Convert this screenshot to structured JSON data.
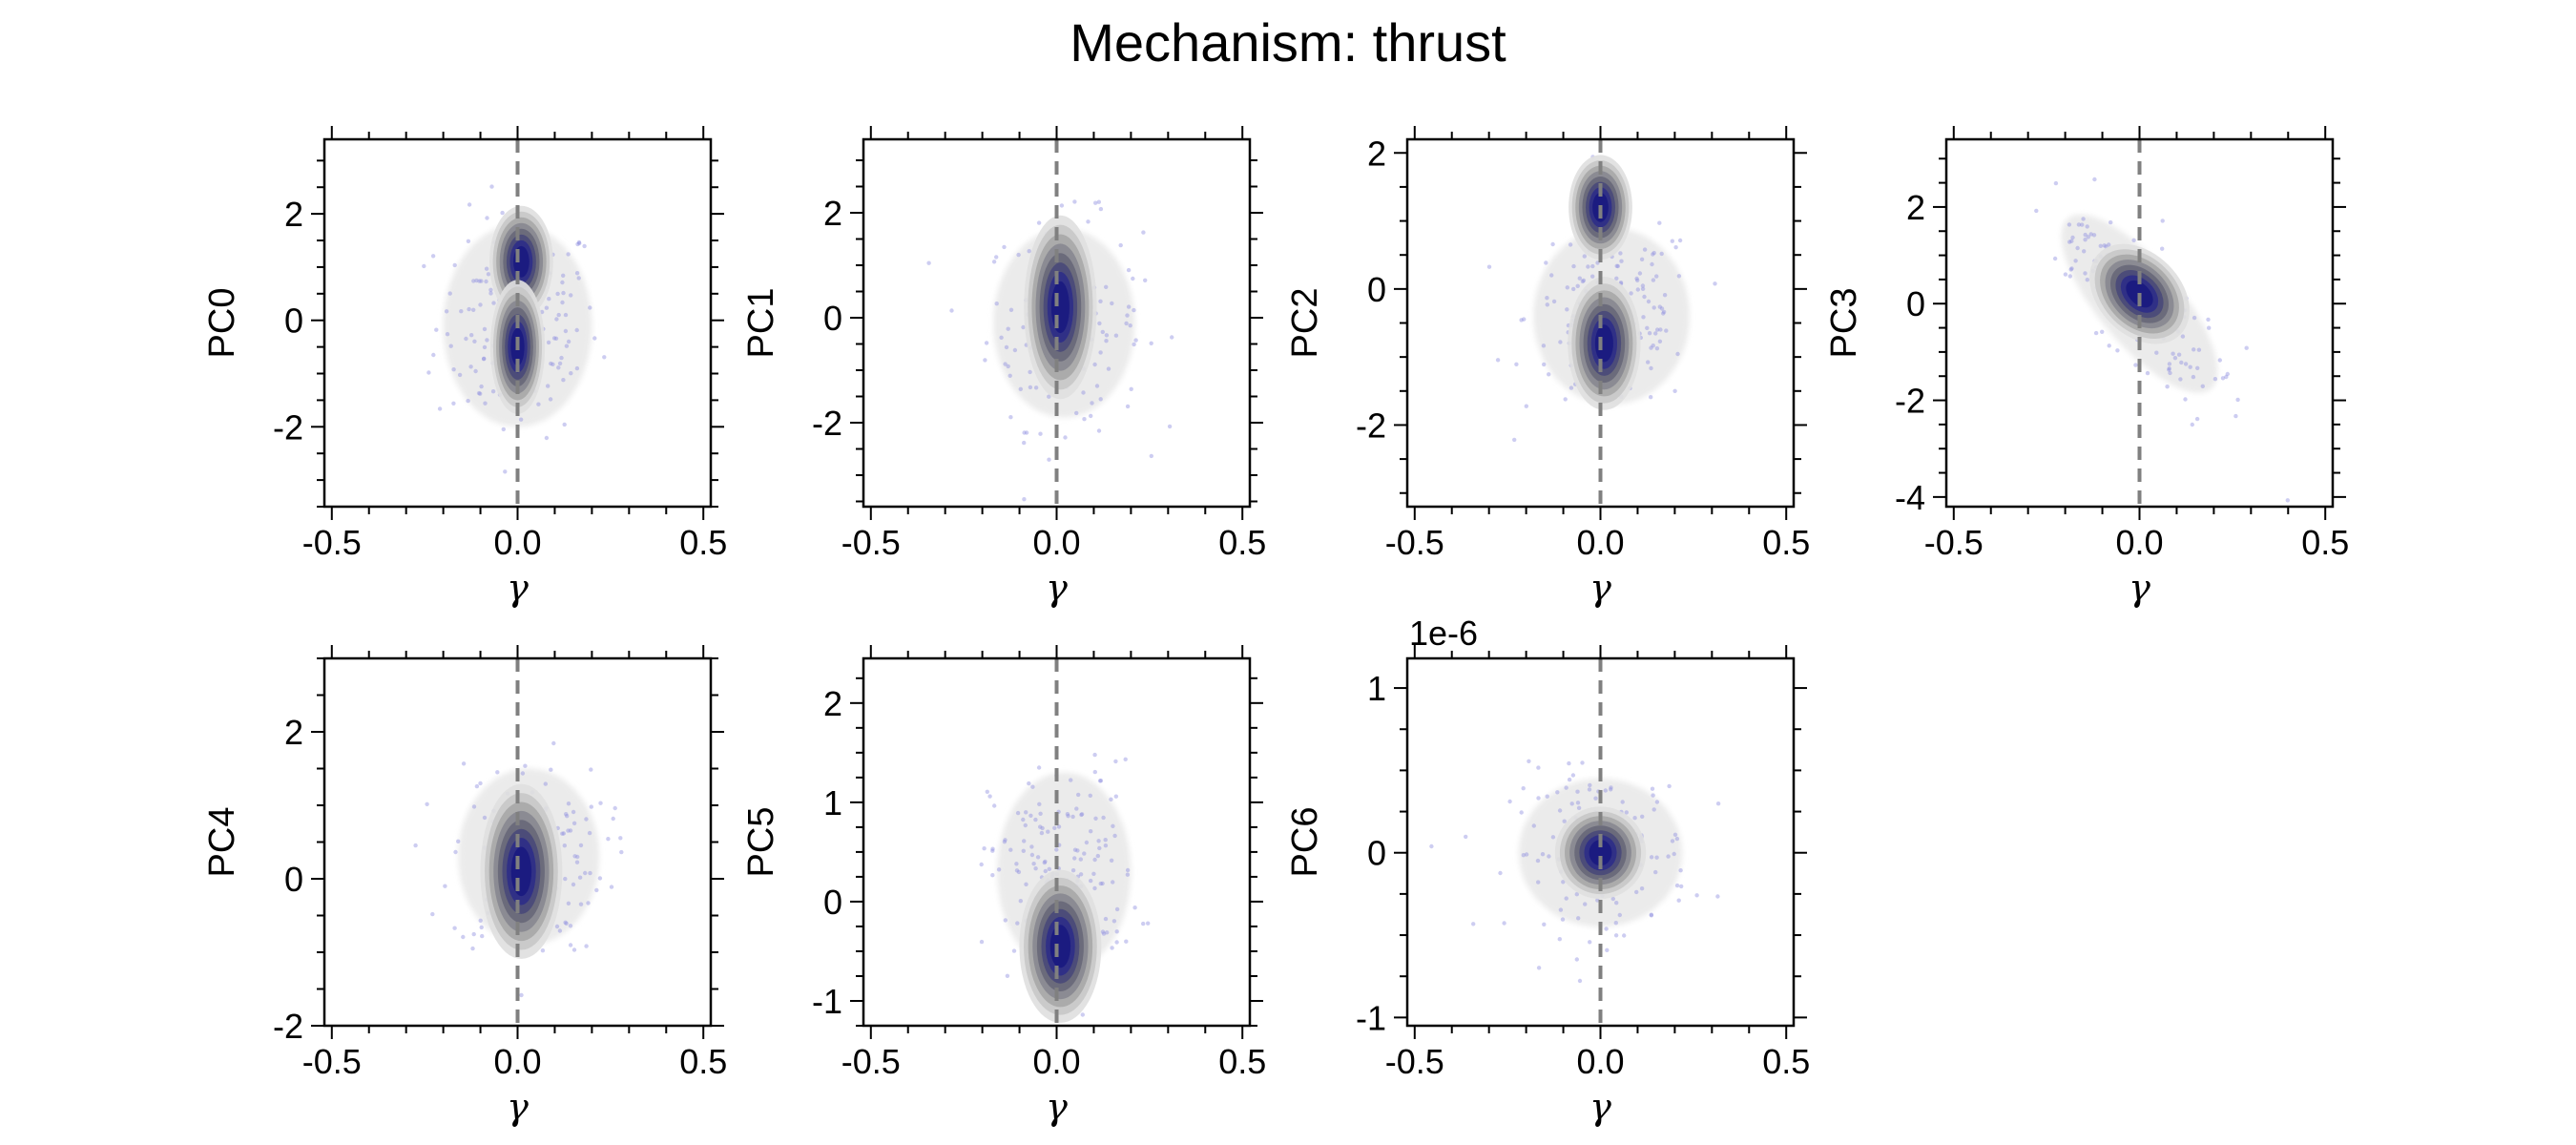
{
  "figure": {
    "title": "Mechanism: thrust"
  },
  "chart_data": [
    {
      "type": "scatter",
      "subtype": "kde-density-contour",
      "xlabel": "γ",
      "ylabel": "PC0",
      "xlim": [
        -0.52,
        0.52
      ],
      "ylim": [
        -3.5,
        3.4
      ],
      "xticks": [
        -0.5,
        0.0,
        0.5
      ],
      "xtick_labels": [
        "-0.5",
        "0.0",
        "0.5"
      ],
      "yticks": [
        -2,
        0,
        2
      ],
      "ytick_labels": [
        "-2",
        "0",
        "2"
      ],
      "reference_line": {
        "x": 0.0,
        "style": "dashed",
        "color": "#808080"
      },
      "density_peaks": [
        {
          "x": 0.01,
          "y": 1.1
        },
        {
          "x": 0.0,
          "y": -0.5
        }
      ],
      "spread": {
        "x": [
          -0.5,
          0.5
        ],
        "y": [
          -3.5,
          3.4
        ]
      },
      "colors": {
        "density": "#1a1a80",
        "low_density": "#e8e8e8",
        "points": "#9090e0"
      }
    },
    {
      "type": "scatter",
      "subtype": "kde-density-contour",
      "xlabel": "γ",
      "ylabel": "PC1",
      "xlim": [
        -0.52,
        0.52
      ],
      "ylim": [
        -3.6,
        3.4
      ],
      "xticks": [
        -0.5,
        0.0,
        0.5
      ],
      "xtick_labels": [
        "-0.5",
        "0.0",
        "0.5"
      ],
      "yticks": [
        -2,
        0,
        2
      ],
      "ytick_labels": [
        "-2",
        "0",
        "2"
      ],
      "reference_line": {
        "x": 0.0,
        "style": "dashed",
        "color": "#808080"
      },
      "density_peaks": [
        {
          "x": 0.01,
          "y": 0.2
        }
      ],
      "spread": {
        "x": [
          -0.5,
          0.5
        ],
        "y": [
          -3.6,
          3.4
        ]
      },
      "colors": {
        "density": "#1a1a80",
        "low_density": "#e8e8e8",
        "points": "#9090e0"
      }
    },
    {
      "type": "scatter",
      "subtype": "kde-density-contour",
      "xlabel": "γ",
      "ylabel": "PC2",
      "xlim": [
        -0.52,
        0.52
      ],
      "ylim": [
        -3.2,
        2.2
      ],
      "xticks": [
        -0.5,
        0.0,
        0.5
      ],
      "xtick_labels": [
        "-0.5",
        "0.0",
        "0.5"
      ],
      "yticks": [
        -2,
        0,
        2
      ],
      "ytick_labels": [
        "-2",
        "0",
        "2"
      ],
      "reference_line": {
        "x": 0.0,
        "style": "dashed",
        "color": "#808080"
      },
      "density_peaks": [
        {
          "x": 0.0,
          "y": 1.2
        },
        {
          "x": 0.01,
          "y": -0.8
        }
      ],
      "spread": {
        "x": [
          -0.5,
          0.5
        ],
        "y": [
          -3.2,
          2.2
        ]
      },
      "colors": {
        "density": "#1a1a80",
        "low_density": "#e8e8e8",
        "points": "#9090e0"
      }
    },
    {
      "type": "scatter",
      "subtype": "kde-density-contour",
      "xlabel": "γ",
      "ylabel": "PC3",
      "xlim": [
        -0.52,
        0.52
      ],
      "ylim": [
        -4.2,
        3.4
      ],
      "xticks": [
        -0.5,
        0.0,
        0.5
      ],
      "xtick_labels": [
        "-0.5",
        "0.0",
        "0.5"
      ],
      "yticks": [
        -4,
        -2,
        0,
        2
      ],
      "ytick_labels": [
        "-4",
        "-2",
        "0",
        "2"
      ],
      "reference_line": {
        "x": 0.0,
        "style": "dashed",
        "color": "#808080"
      },
      "density_peaks": [
        {
          "x": 0.0,
          "y": 0.2
        }
      ],
      "correlation": "negative",
      "spread": {
        "x": [
          -0.5,
          0.45
        ],
        "y": [
          -4.2,
          3.4
        ]
      },
      "colors": {
        "density": "#1a1a80",
        "low_density": "#e8e8e8",
        "points": "#9090e0"
      }
    },
    {
      "type": "scatter",
      "subtype": "kde-density-contour",
      "xlabel": "γ",
      "ylabel": "PC4",
      "xlim": [
        -0.52,
        0.52
      ],
      "ylim": [
        -2.0,
        3.0
      ],
      "xticks": [
        -0.5,
        0.0,
        0.5
      ],
      "xtick_labels": [
        "-0.5",
        "0.0",
        "0.5"
      ],
      "yticks": [
        -2,
        0,
        2
      ],
      "ytick_labels": [
        "-2",
        "0",
        "2"
      ],
      "reference_line": {
        "x": 0.0,
        "style": "dashed",
        "color": "#808080"
      },
      "density_peaks": [
        {
          "x": 0.01,
          "y": 0.1
        }
      ],
      "spread": {
        "x": [
          -0.5,
          0.45
        ],
        "y": [
          -2.0,
          3.0
        ]
      },
      "colors": {
        "density": "#1a1a80",
        "low_density": "#e8e8e8",
        "points": "#9090e0"
      }
    },
    {
      "type": "scatter",
      "subtype": "kde-density-contour",
      "xlabel": "γ",
      "ylabel": "PC5",
      "xlim": [
        -0.52,
        0.52
      ],
      "ylim": [
        -1.25,
        2.45
      ],
      "xticks": [
        -0.5,
        0.0,
        0.5
      ],
      "xtick_labels": [
        "-0.5",
        "0.0",
        "0.5"
      ],
      "yticks": [
        -1,
        0,
        1,
        2
      ],
      "ytick_labels": [
        "-1",
        "0",
        "1",
        "2"
      ],
      "reference_line": {
        "x": 0.0,
        "style": "dashed",
        "color": "#808080"
      },
      "density_peaks": [
        {
          "x": 0.01,
          "y": -0.45
        }
      ],
      "spread": {
        "x": [
          -0.5,
          0.45
        ],
        "y": [
          -1.25,
          2.45
        ]
      },
      "colors": {
        "density": "#1a1a80",
        "low_density": "#e8e8e8",
        "points": "#9090e0"
      }
    },
    {
      "type": "scatter",
      "subtype": "kde-density-contour",
      "xlabel": "γ",
      "ylabel": "PC6",
      "offset_label": "1e-6",
      "xlim": [
        -0.52,
        0.52
      ],
      "ylim": [
        -1.05,
        1.18
      ],
      "xticks": [
        -0.5,
        0.0,
        0.5
      ],
      "xtick_labels": [
        "-0.5",
        "0.0",
        "0.5"
      ],
      "yticks": [
        -1,
        0,
        1
      ],
      "ytick_labels": [
        "-1",
        "0",
        "1"
      ],
      "reference_line": {
        "x": 0.0,
        "style": "dashed",
        "color": "#808080"
      },
      "density_peaks": [
        {
          "x": 0.0,
          "y": 0.0
        }
      ],
      "spread": {
        "x": [
          -0.5,
          0.5
        ],
        "y": [
          -1.05,
          1.18
        ]
      },
      "colors": {
        "density": "#1a1a80",
        "low_density": "#e8e8e8",
        "points": "#9090e0"
      }
    }
  ]
}
